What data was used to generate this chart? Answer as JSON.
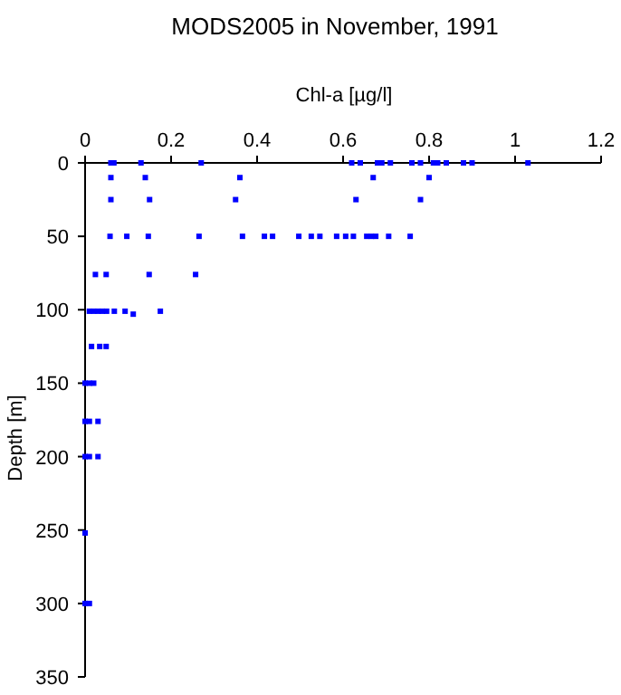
{
  "chart_data": {
    "type": "scatter",
    "title": "MODS2005 in November, 1991",
    "xlabel": "Chl-a [µg/l]",
    "ylabel": "Depth [m]",
    "xlim": [
      0,
      1.2
    ],
    "xticks": [
      0,
      0.2,
      0.4,
      0.6,
      0.8,
      1,
      1.2
    ],
    "ylim": [
      350,
      0
    ],
    "yticks": [
      0,
      50,
      100,
      150,
      200,
      250,
      300,
      350
    ],
    "grid": false,
    "marker": "square",
    "series": [
      {
        "color": "#0000ff",
        "x": [
          0.06,
          0.067,
          0.13,
          0.27,
          0.62,
          0.64,
          0.68,
          0.69,
          0.71,
          0.76,
          0.78,
          0.81,
          0.82,
          0.84,
          0.88,
          0.9,
          1.03,
          0.06,
          0.14,
          0.36,
          0.67,
          0.8,
          0.06,
          0.15,
          0.35,
          0.63,
          0.78,
          0.058,
          0.097,
          0.147,
          0.265,
          0.366,
          0.417,
          0.436,
          0.497,
          0.526,
          0.546,
          0.585,
          0.606,
          0.624,
          0.655,
          0.666,
          0.676,
          0.706,
          0.756,
          0.024,
          0.049,
          0.149,
          0.257,
          0.01,
          0.02,
          0.03,
          0.04,
          0.05,
          0.068,
          0.093,
          0.112,
          0.175,
          0.015,
          0.034,
          0.049,
          0,
          0.01,
          0.02,
          0,
          0.01,
          0.03,
          0,
          0.01,
          0.03,
          0,
          0,
          0.01
        ],
        "values": [
          0,
          0,
          0,
          0,
          0,
          0,
          0,
          0,
          0,
          0,
          0,
          0,
          0,
          0,
          0,
          0,
          0,
          10,
          10,
          10,
          10,
          10,
          25,
          25,
          25,
          25,
          25,
          50,
          50,
          50,
          50,
          50,
          50,
          50,
          50,
          50,
          50,
          50,
          50,
          50,
          50,
          50,
          50,
          50,
          50,
          76,
          76,
          76,
          76,
          101,
          101,
          101,
          101,
          101,
          101,
          101,
          103,
          101,
          125,
          125,
          125,
          150,
          150,
          150,
          176,
          176,
          176,
          200,
          200,
          200,
          252,
          300,
          300
        ]
      }
    ]
  }
}
